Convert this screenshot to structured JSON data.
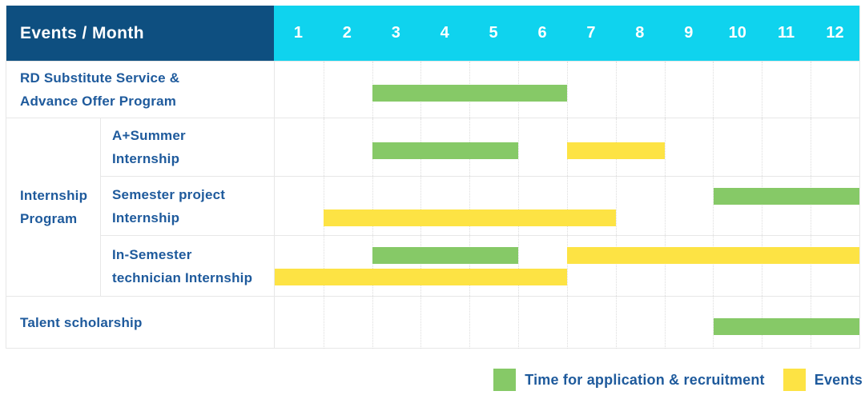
{
  "header": {
    "events_month_label": "Events / Month"
  },
  "colors": {
    "header_bg": "#0E4F80",
    "months_header_bg": "#0FD3EE",
    "label_text": "#1E5A9C",
    "grid_line": "#E7E7E7",
    "recruitment": "#86C967",
    "event": "#FDE344"
  },
  "chart_data": {
    "type": "gantt",
    "title": "Events / Month",
    "months": [
      "1",
      "2",
      "3",
      "4",
      "5",
      "6",
      "7",
      "8",
      "9",
      "10",
      "11",
      "12"
    ],
    "x_range": [
      1,
      12
    ],
    "grid": true,
    "group_label_lines": [
      "Internship",
      "Program"
    ],
    "rows": [
      {
        "label": "RD Substitute Service & Advance Offer Program",
        "label_lines": [
          "RD Substitute Service &",
          "Advance Offer Program"
        ],
        "group": "",
        "lanes": [
          [
            {
              "type": "recruitment",
              "start_month": 3,
              "end_month": 6
            }
          ]
        ]
      },
      {
        "label": "A+Summer Internship",
        "label_lines": [
          "A+Summer",
          "Internship"
        ],
        "group": "Internship Program",
        "lanes": [
          [
            {
              "type": "recruitment",
              "start_month": 3,
              "end_month": 5
            },
            {
              "type": "event",
              "start_month": 7,
              "end_month": 8
            }
          ]
        ]
      },
      {
        "label": "Semester project Internship",
        "label_lines": [
          "Semester project",
          "Internship"
        ],
        "group": "Internship Program",
        "lanes": [
          [
            {
              "type": "recruitment",
              "start_month": 10,
              "end_month": 12
            }
          ],
          [
            {
              "type": "event",
              "start_month": 2,
              "end_month": 7
            }
          ]
        ]
      },
      {
        "label": "In-Semester technician Internship",
        "label_lines": [
          "In-Semester",
          "technician Internship"
        ],
        "group": "Internship Program",
        "lanes": [
          [
            {
              "type": "recruitment",
              "start_month": 3,
              "end_month": 5
            },
            {
              "type": "event",
              "start_month": 7,
              "end_month": 12
            }
          ],
          [
            {
              "type": "event",
              "start_month": 1,
              "end_month": 6
            }
          ]
        ]
      },
      {
        "label": "Talent scholarship",
        "label_lines": [
          "Talent scholarship"
        ],
        "group": "",
        "lanes": [
          [
            {
              "type": "recruitment",
              "start_month": 10,
              "end_month": 12
            }
          ]
        ]
      }
    ],
    "legend": [
      {
        "type": "recruitment",
        "label": "Time for application & recruitment"
      },
      {
        "type": "event",
        "label": "Events"
      }
    ],
    "legend_position": "bottom-right"
  }
}
